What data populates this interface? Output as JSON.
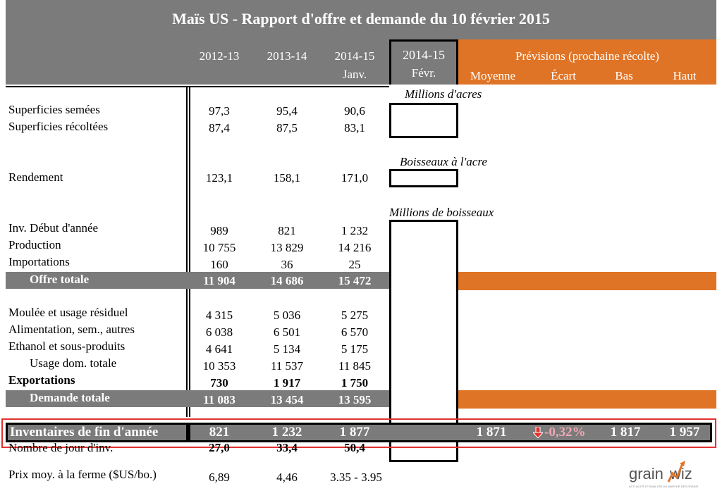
{
  "title": "Maïs US - Rapport d'offre et demande du 10 février 2015",
  "columns": {
    "y2012": "2012-13",
    "y2013": "2013-14",
    "y2014": "2014-15",
    "y2014_sub": "Janv.",
    "feb": "2014-15",
    "feb_sub": "Févr.",
    "forecast_title": "Prévisions (prochaine récolte)",
    "moyenne": "Moyenne",
    "ecart": "Écart",
    "bas": "Bas",
    "haut": "Haut"
  },
  "units": {
    "acres": "Millions d'acres",
    "bushels_acre": "Boisseaux à l'acre",
    "bushels": "Millions de boisseaux"
  },
  "rows": {
    "sup_semees": {
      "label": "Superficies semées",
      "v": [
        "97,3",
        "95,4",
        "90,6"
      ]
    },
    "sup_recoltees": {
      "label": "Superficies récoltées",
      "v": [
        "87,4",
        "87,5",
        "83,1"
      ]
    },
    "rendement": {
      "label": "Rendement",
      "v": [
        "123,1",
        "158,1",
        "171,0"
      ]
    },
    "inv_debut": {
      "label": "Inv. Début d'année",
      "v": [
        "989",
        "821",
        "1 232"
      ]
    },
    "production": {
      "label": "Production",
      "v": [
        "10 755",
        "13 829",
        "14 216"
      ]
    },
    "importations": {
      "label": "Importations",
      "v": [
        "160",
        "36",
        "25"
      ]
    },
    "offre_totale": {
      "label": "Offre totale",
      "v": [
        "11 904",
        "14 686",
        "15 472"
      ]
    },
    "moulee": {
      "label": "Moulée et usage résiduel",
      "v": [
        "4 315",
        "5 036",
        "5 275"
      ]
    },
    "alimentation": {
      "label": "Alimentation, sem., autres",
      "v": [
        "6 038",
        "6 501",
        "6 570"
      ]
    },
    "ethanol": {
      "label": "Ethanol et sous-produits",
      "v": [
        "4 641",
        "5 134",
        "5 175"
      ]
    },
    "usage_dom": {
      "label": "Usage dom. totale",
      "v": [
        "10 353",
        "11 537",
        "11 845"
      ]
    },
    "exportations": {
      "label": "Exportations",
      "v": [
        "730",
        "1 917",
        "1 750"
      ]
    },
    "demande_totale": {
      "label": "Demande totale",
      "v": [
        "11 083",
        "13 454",
        "13 595"
      ]
    },
    "inventaires": {
      "label": "Inventaires de fin d'année",
      "v": [
        "821",
        "1 232",
        "1 877"
      ]
    },
    "nb_jours": {
      "label": "Nombre de jour d'inv.",
      "v": [
        "27,0",
        "33,4",
        "50,4"
      ]
    },
    "prix": {
      "label": "Prix moy. à la ferme ($US/bo.)",
      "v": [
        "6,89",
        "4,46",
        "3.35 - 3.95"
      ]
    }
  },
  "forecast": {
    "moyenne": "1 871",
    "ecart": "-0,32%",
    "bas": "1 817",
    "haut": "1 957"
  },
  "colors": {
    "grey": "#7b7b7b",
    "orange": "#e07426",
    "highlight": "#e0322f",
    "ecart": "#f0a8b4"
  },
  "logo": {
    "text": "grainwiz",
    "tagline": "ACTUALITÉ ET ANALYSE DU MARCHÉ DES GRAINS"
  }
}
